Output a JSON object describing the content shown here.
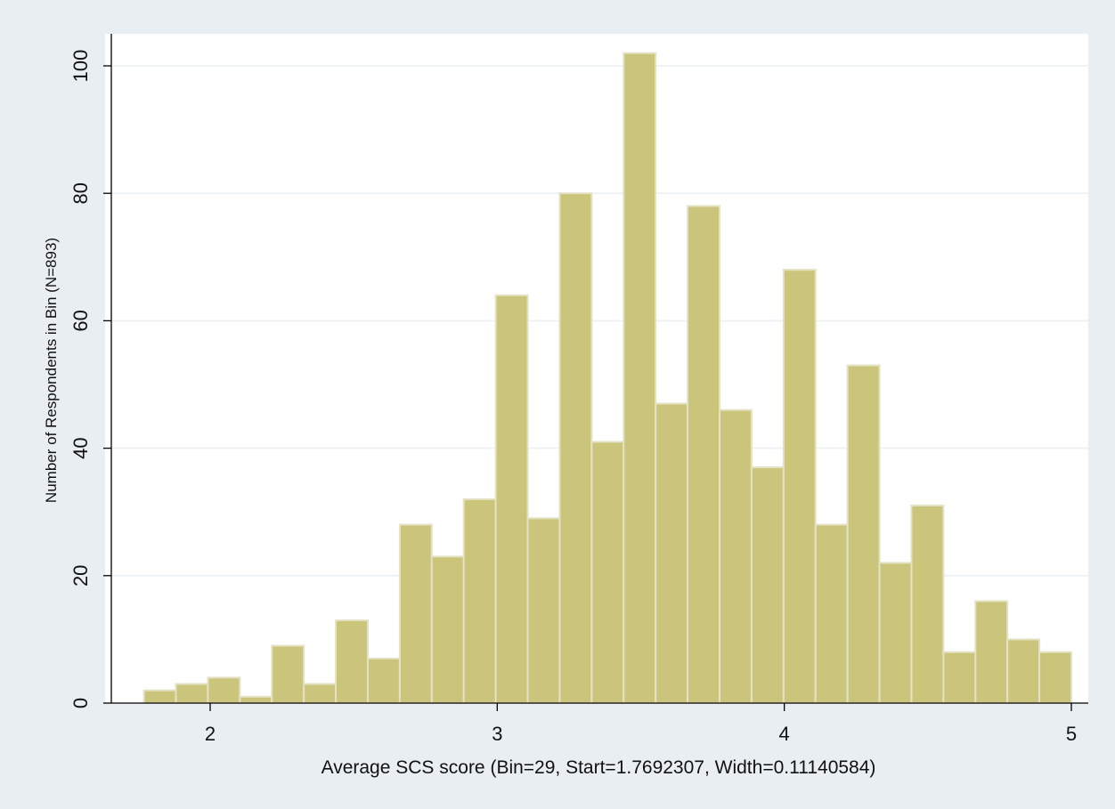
{
  "chart_data": {
    "type": "bar",
    "subtype": "histogram",
    "bins": 29,
    "bin_start": 1.7692307,
    "bin_width": 0.11140584,
    "values": [
      2,
      3,
      4,
      1,
      9,
      3,
      13,
      7,
      28,
      23,
      32,
      64,
      29,
      80,
      41,
      102,
      47,
      78,
      46,
      37,
      68,
      28,
      53,
      22,
      31,
      8,
      16,
      10,
      8
    ],
    "xlabel": "Average SCS score (Bin=29, Start=1.7692307, Width=0.11140584)",
    "ylabel": "Number of Respondents in Bin (N=893)",
    "xlim": [
      1.6,
      5.06
    ],
    "ylim": [
      0,
      105
    ],
    "xticks": [
      2,
      3,
      4,
      5
    ],
    "yticks": [
      0,
      20,
      40,
      60,
      80,
      100
    ],
    "grid": true,
    "colors": {
      "bar": "#cbc57b",
      "bar_edge": "#e4e2c4",
      "plot_background": "#ffffff",
      "page_background": "#e9eef3"
    }
  }
}
